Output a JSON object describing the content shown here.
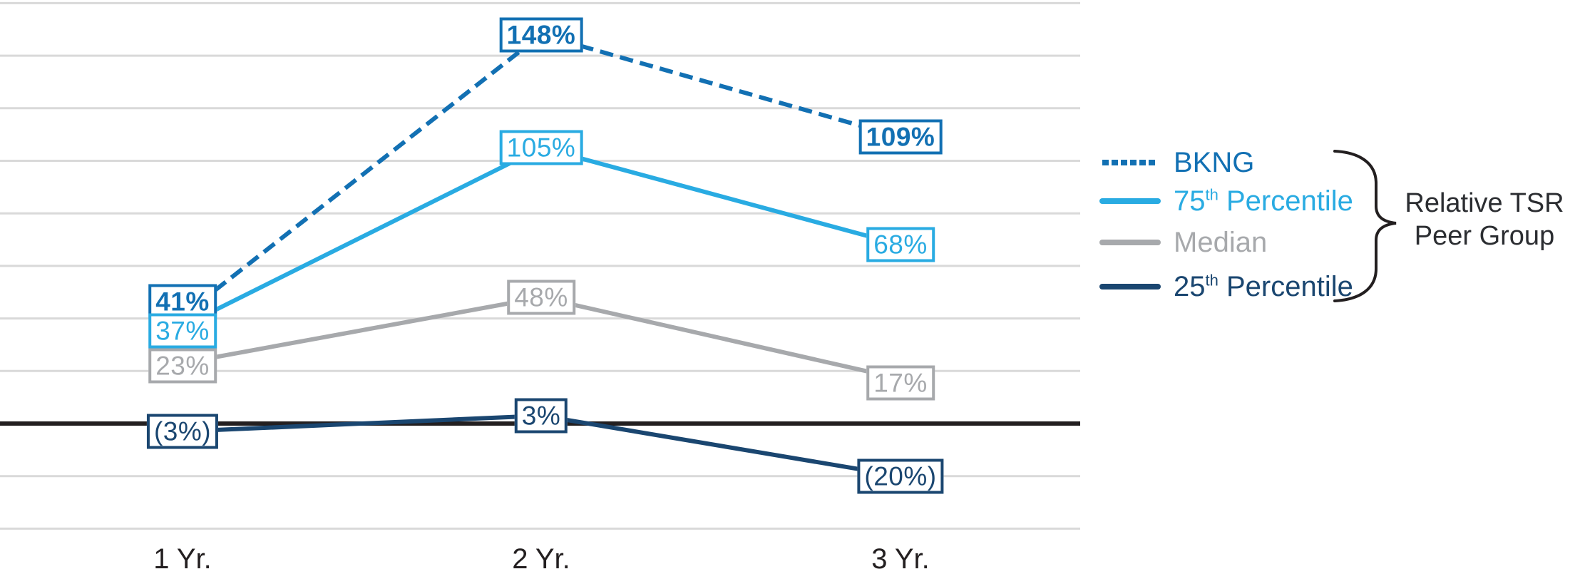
{
  "chart_data": {
    "type": "line",
    "title": "",
    "categories": [
      "1 Yr.",
      "2 Yr.",
      "3 Yr."
    ],
    "y_axis": {
      "unit": "%",
      "min": -40,
      "max": 160,
      "grid_step": 20,
      "tick_labels": "hidden",
      "zero_line_emphasized": true,
      "grid": "on"
    },
    "series": [
      {
        "name": "BKNG",
        "line": "dashed",
        "color": "#1270b3",
        "values": [
          41,
          148,
          109
        ],
        "point_labels": [
          "41%",
          "148%",
          "109%"
        ],
        "labels_bold": true
      },
      {
        "name": "75th Percentile",
        "line": "solid",
        "color": "#29abe2",
        "values": [
          37,
          105,
          68
        ],
        "point_labels": [
          "37%",
          "105%",
          "68%"
        ],
        "labels_bold": false
      },
      {
        "name": "Median",
        "line": "solid",
        "color": "#a7a9ac",
        "values": [
          23,
          48,
          17
        ],
        "point_labels": [
          "23%",
          "48%",
          "17%"
        ],
        "labels_bold": false
      },
      {
        "name": "25th Percentile",
        "line": "solid",
        "color": "#1a4670",
        "values": [
          -3,
          3,
          -20
        ],
        "point_labels": [
          "(3%)",
          "3%",
          "(20%)"
        ],
        "labels_bold": false
      }
    ],
    "legend": {
      "position": "right",
      "items": [
        {
          "pre": "BKNG",
          "sup": "",
          "post": ""
        },
        {
          "pre": "75",
          "sup": "th",
          "post": " Percentile"
        },
        {
          "pre": "Median",
          "sup": "",
          "post": ""
        },
        {
          "pre": "25",
          "sup": "th",
          "post": " Percentile"
        }
      ],
      "group_label_line1": "Relative TSR",
      "group_label_line2": "Peer Group"
    }
  },
  "colors": {
    "gridline": "#d9d9d9",
    "zero_line": "#231f20",
    "axis_text": "#231f20",
    "group_label_text": "#2b2d31",
    "background": "#ffffff",
    "label_box_bg": "#ffffff",
    "brace": "#231f20"
  }
}
